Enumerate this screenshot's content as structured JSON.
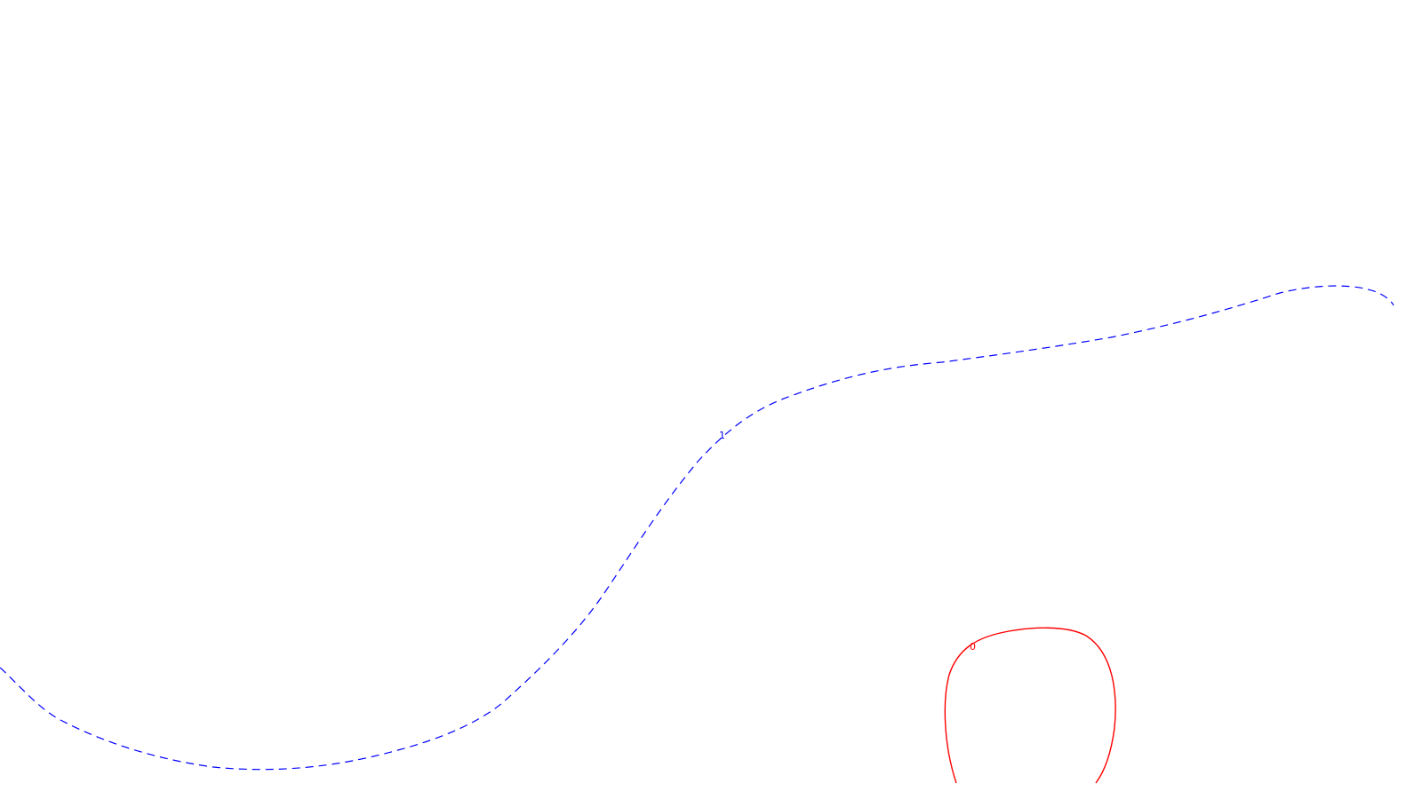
{
  "contours": [
    {
      "label": "1",
      "color": "#0000ff",
      "style": "dashed"
    },
    {
      "label": "0",
      "color": "#ff0000",
      "style": "solid"
    }
  ]
}
